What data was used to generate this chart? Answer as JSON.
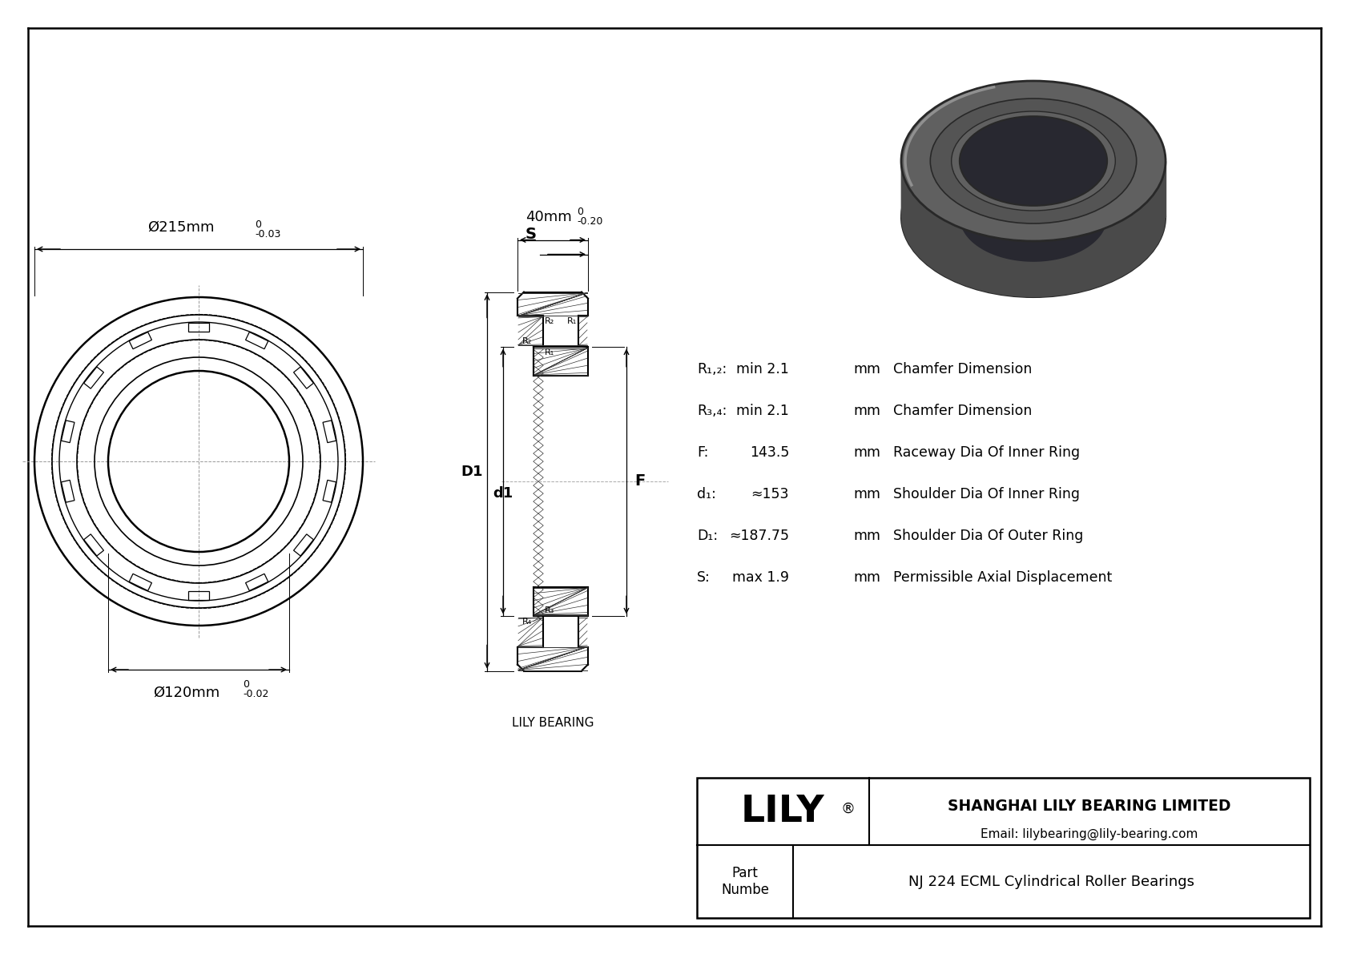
{
  "bg_color": "#ffffff",
  "line_color": "#000000",
  "dims": {
    "outer_dia": "Ø215mm",
    "outer_tol_top": "0",
    "outer_tol_bot": "-0.03",
    "inner_dia": "Ø120mm",
    "inner_tol_top": "0",
    "inner_tol_bot": "-0.02",
    "width": "40mm",
    "width_tol_top": "0",
    "width_tol_bot": "-0.20"
  },
  "specs": [
    {
      "label": "R₁,₂:",
      "value": "min 2.1",
      "unit": "mm",
      "desc": "Chamfer Dimension"
    },
    {
      "label": "R₃,₄:",
      "value": "min 2.1",
      "unit": "mm",
      "desc": "Chamfer Dimension"
    },
    {
      "label": "F:",
      "value": "143.5",
      "unit": "mm",
      "desc": "Raceway Dia Of Inner Ring"
    },
    {
      "label": "d₁:",
      "value": "≈153",
      "unit": "mm",
      "desc": "Shoulder Dia Of Inner Ring"
    },
    {
      "label": "D₁:",
      "value": "≈187.75",
      "unit": "mm",
      "desc": "Shoulder Dia Of Outer Ring"
    },
    {
      "label": "S:",
      "value": "max 1.9",
      "unit": "mm",
      "desc": "Permissible Axial Displacement"
    }
  ],
  "company": "SHANGHAI LILY BEARING LIMITED",
  "email": "Email: lilybearing@lily-bearing.com",
  "part_label": "Part\nNumbe",
  "part_name": "NJ 224 ECML Cylindrical Roller Bearings",
  "watermark": "LILY BEARING"
}
